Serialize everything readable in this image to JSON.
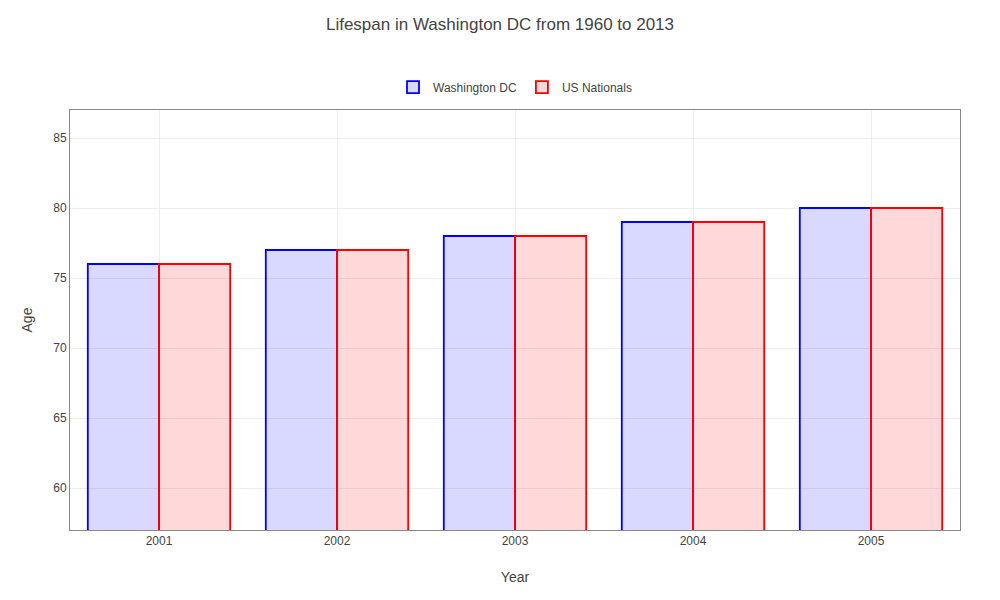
{
  "chart_data": {
    "type": "bar",
    "title": "Lifespan in Washington DC from 1960 to 2013",
    "x_label": "Year",
    "y_label": "Age",
    "categories": [
      "2001",
      "2002",
      "2003",
      "2004",
      "2005"
    ],
    "series": [
      {
        "name": "Washington DC",
        "color": "#0000ff",
        "values": [
          76.0,
          77.0,
          78.0,
          79.0,
          80.0
        ]
      },
      {
        "name": "US Nationals",
        "color": "#ff0000",
        "values": [
          76.0,
          77.0,
          78.0,
          79.0,
          80.0
        ]
      }
    ],
    "ylim": [
      57,
      87
    ],
    "yticks": [
      60,
      65,
      70,
      75,
      80,
      85
    ],
    "grid": true,
    "legend": "top"
  }
}
